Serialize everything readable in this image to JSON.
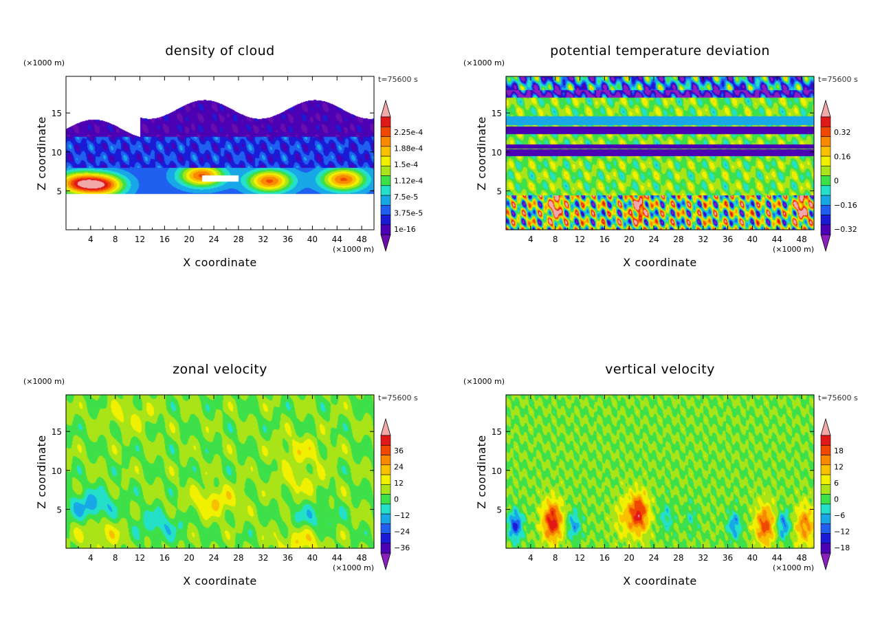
{
  "chart_data": [
    {
      "type": "heatmap",
      "title": "density of cloud",
      "xlabel": "X coordinate",
      "ylabel": "Z coordinate",
      "x_units": "(×1000 m)",
      "y_units": "(×1000 m)",
      "time_label": "t=75600 s",
      "xlim": [
        0,
        50
      ],
      "ylim": [
        0,
        19.7
      ],
      "x_ticks": [
        "4",
        "8",
        "12",
        "16",
        "20",
        "24",
        "28",
        "32",
        "36",
        "40",
        "44",
        "48"
      ],
      "y_ticks": [
        "5",
        "10",
        "15"
      ],
      "colorbar_labels": [
        "1e-16",
        "3.75e-5",
        "7.5e-5",
        "1.12e-4",
        "1.5e-4",
        "1.88e-4",
        "2.25e-4"
      ],
      "colors": [
        "#6a0dad",
        "#4b00b4",
        "#1b1bd6",
        "#1f60f0",
        "#18a8e8",
        "#24e0c8",
        "#3ee04a",
        "#a8e418",
        "#f0f000",
        "#f8c000",
        "#f88a00",
        "#f04800",
        "#e01818",
        "#f0a8a8"
      ],
      "field": "cloud"
    },
    {
      "type": "heatmap",
      "title": "potential temperature deviation",
      "xlabel": "X coordinate",
      "ylabel": "Z coordinate",
      "x_units": "(×1000 m)",
      "y_units": "(×1000 m)",
      "time_label": "t=75600 s",
      "xlim": [
        0,
        50
      ],
      "ylim": [
        0,
        19.7
      ],
      "x_ticks": [
        "4",
        "8",
        "12",
        "16",
        "20",
        "24",
        "28",
        "32",
        "36",
        "40",
        "44",
        "48"
      ],
      "y_ticks": [
        "5",
        "10",
        "15"
      ],
      "colorbar_labels": [
        "−0.32",
        "−0.16",
        "0",
        "0.16",
        "0.32"
      ],
      "colors": [
        "#8a1fc0",
        "#4b00b4",
        "#1b1bd6",
        "#1f60f0",
        "#18a8e8",
        "#24e0c8",
        "#3ee04a",
        "#a8e418",
        "#f0f000",
        "#f8c000",
        "#f88a00",
        "#f04800",
        "#e01818",
        "#f0a8a8"
      ],
      "field": "theta"
    },
    {
      "type": "heatmap",
      "title": "zonal velocity",
      "xlabel": "X coordinate",
      "ylabel": "Z coordinate",
      "x_units": "(×1000 m)",
      "y_units": "(×1000 m)",
      "time_label": "t=75600 s",
      "xlim": [
        0,
        50
      ],
      "ylim": [
        0,
        19.7
      ],
      "x_ticks": [
        "4",
        "8",
        "12",
        "16",
        "20",
        "24",
        "28",
        "32",
        "36",
        "40",
        "44",
        "48"
      ],
      "y_ticks": [
        "5",
        "10",
        "15"
      ],
      "colorbar_labels": [
        "−36",
        "−24",
        "−12",
        "0",
        "12",
        "24",
        "36"
      ],
      "colors": [
        "#8a1fc0",
        "#4b00b4",
        "#1b1bd6",
        "#1f60f0",
        "#18a8e8",
        "#24e0c8",
        "#3ee04a",
        "#a8e418",
        "#f0f000",
        "#f8c000",
        "#f88a00",
        "#f04800",
        "#e01818",
        "#f0a8a8"
      ],
      "field": "u"
    },
    {
      "type": "heatmap",
      "title": "vertical velocity",
      "xlabel": "X coordinate",
      "ylabel": "Z coordinate",
      "x_units": "(×1000 m)",
      "y_units": "(×1000 m)",
      "time_label": "t=75600 s",
      "xlim": [
        0,
        50
      ],
      "ylim": [
        0,
        19.7
      ],
      "x_ticks": [
        "4",
        "8",
        "12",
        "16",
        "20",
        "24",
        "28",
        "32",
        "36",
        "40",
        "44",
        "48"
      ],
      "y_ticks": [
        "5",
        "10",
        "15"
      ],
      "colorbar_labels": [
        "−18",
        "−12",
        "−6",
        "0",
        "6",
        "12",
        "18"
      ],
      "colors": [
        "#8a1fc0",
        "#4b00b4",
        "#1b1bd6",
        "#1f60f0",
        "#18a8e8",
        "#24e0c8",
        "#3ee04a",
        "#a8e418",
        "#f0f000",
        "#f8c000",
        "#f88a00",
        "#f04800",
        "#e01818",
        "#f0a8a8"
      ],
      "field": "w"
    }
  ]
}
